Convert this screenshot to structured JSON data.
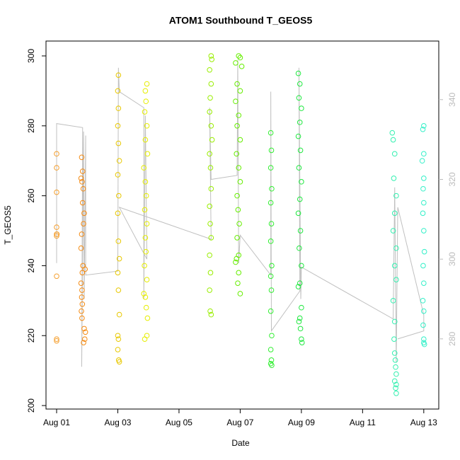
{
  "chart_data": {
    "type": "scatter",
    "title": "ATOM1 Southbound T_GEOS5",
    "x_label": "Date",
    "y_label": "T_GEOS5",
    "xlim": [
      0.653,
      13.49
    ],
    "ylim": [
      199,
      304.25
    ],
    "y2lim": [
      262.4,
      354.7
    ],
    "xticks": [
      {
        "value": 1,
        "label": "Aug 01"
      },
      {
        "value": 3,
        "label": "Aug 03"
      },
      {
        "value": 5,
        "label": "Aug 05"
      },
      {
        "value": 7,
        "label": "Aug 07"
      },
      {
        "value": 9,
        "label": "Aug 09"
      },
      {
        "value": 11,
        "label": "Aug 11"
      },
      {
        "value": 13,
        "label": "Aug 13"
      }
    ],
    "yticks": [
      200,
      220,
      240,
      260,
      280,
      300
    ],
    "y2ticks": [
      280,
      300,
      320,
      340
    ],
    "series": [
      {
        "type": "line",
        "axis": "y2",
        "color": "#c0c0c0",
        "x": [
          1.0,
          1.0,
          1.85,
          1.82,
          1.88,
          1.9,
          1.95,
          1.95,
          3.0,
          3.02,
          3.05,
          3.85,
          3.85,
          3.9,
          3.95,
          3.05,
          6.05,
          6.0,
          6.05,
          6.9,
          6.92,
          6.95,
          7.0,
          8.0,
          8.0,
          8.02,
          8.95,
          8.92,
          8.98,
          9.0,
          12.0,
          12.05,
          12.1,
          12.15,
          13.0,
          13.0,
          12.15
        ],
        "values": [
          299,
          334,
          333,
          273,
          332,
          290,
          331,
          296,
          297,
          348,
          342,
          338,
          290,
          336,
          300,
          313,
          305,
          338,
          320,
          321,
          350,
          299,
          306,
          296,
          342,
          282,
          292,
          348,
          290,
          298,
          285,
          318,
          274,
          313,
          286,
          282,
          280
        ]
      },
      {
        "type": "scatter",
        "color": "#f5a030",
        "x": [
          1.0,
          1.0,
          1.0,
          1.0,
          1.0,
          1.0,
          1.01,
          1.0,
          1.0,
          1.0
        ],
        "values": [
          272,
          268,
          261,
          251,
          249,
          248.5,
          249,
          237,
          219,
          218.5
        ]
      },
      {
        "type": "scatter",
        "color": "#f58a10",
        "x": [
          1.82,
          1.85,
          1.8,
          1.83,
          1.87,
          1.85,
          1.9,
          1.88,
          1.82,
          1.8,
          1.86,
          1.84,
          1.8,
          1.83,
          1.82,
          1.84,
          1.81,
          1.83,
          1.9,
          1.92,
          1.88,
          1.94,
          1.93
        ],
        "values": [
          271,
          267,
          265,
          264,
          262,
          258,
          255,
          252,
          249,
          245,
          240,
          238,
          235,
          233,
          231,
          229,
          227,
          225,
          222,
          219,
          218,
          221,
          239
        ]
      },
      {
        "type": "scatter",
        "color": "#e8c800",
        "x": [
          3.02,
          3.0,
          3.02,
          3.0,
          3.02,
          3.05,
          3.0,
          3.03,
          3.0,
          3.02,
          3.05,
          3.0,
          3.02,
          3.05,
          3.0,
          3.02,
          3.0,
          3.03,
          3.05
        ],
        "values": [
          294.5,
          290,
          285,
          280,
          275,
          270,
          266,
          260,
          255,
          247,
          242,
          238,
          233,
          226,
          220,
          219,
          216,
          213,
          212.5
        ]
      },
      {
        "type": "scatter",
        "color": "#e6ee00",
        "x": [
          3.95,
          3.9,
          3.92,
          3.88,
          3.95,
          3.9,
          3.97,
          3.85,
          3.9,
          3.93,
          3.88,
          3.95,
          3.9,
          3.92,
          3.87,
          3.95,
          3.85,
          3.9,
          3.93,
          3.97,
          3.95,
          3.88
        ],
        "values": [
          292,
          290,
          287,
          284,
          280,
          276,
          272,
          268,
          264,
          260,
          256,
          252,
          248,
          244,
          240,
          236,
          232,
          231,
          228,
          225,
          220,
          219
        ]
      },
      {
        "type": "scatter",
        "color": "#99ee00",
        "x": [
          6.05,
          6.07,
          6.0,
          6.05,
          6.02,
          6.0,
          6.05,
          6.08,
          6.0,
          6.03,
          6.05,
          6.0,
          6.02,
          6.05,
          6.0,
          6.03,
          6.0,
          6.02,
          6.05
        ],
        "values": [
          300,
          299,
          296,
          292,
          288,
          284,
          280,
          276,
          272,
          268,
          262,
          257,
          252,
          248,
          243,
          238,
          233,
          227,
          226
        ]
      },
      {
        "type": "scatter",
        "color": "#66ee00",
        "x": [
          6.95,
          7.0,
          6.85,
          7.05,
          6.9,
          7.0,
          6.85,
          6.95,
          6.9,
          7.0,
          6.88,
          6.95,
          7.0,
          6.9,
          6.93,
          6.97,
          6.9,
          6.95,
          6.88,
          6.85,
          6.95,
          6.92,
          7.0
        ],
        "values": [
          300,
          299.5,
          298,
          297,
          292,
          290,
          287,
          283,
          280,
          276,
          272,
          268,
          264,
          260,
          256,
          252,
          248,
          243,
          242,
          241,
          238,
          235,
          232
        ]
      },
      {
        "type": "scatter",
        "color": "#30ee30",
        "x": [
          8.0,
          8.02,
          8.0,
          8.03,
          8.0,
          8.02,
          8.0,
          8.03,
          8.0,
          8.02,
          8.0,
          8.03,
          8.0,
          8.02,
          8.0,
          8.03
        ],
        "values": [
          278,
          273,
          268,
          262,
          258,
          252,
          247,
          240,
          237,
          233,
          227,
          220,
          216,
          213,
          212,
          211.5
        ]
      },
      {
        "type": "scatter",
        "color": "#20e840",
        "x": [
          8.9,
          8.95,
          8.92,
          9.0,
          8.95,
          8.9,
          8.97,
          8.92,
          9.0,
          8.95,
          8.9,
          8.97,
          8.93,
          9.0,
          8.95,
          8.9,
          9.0,
          8.95,
          8.92,
          8.97,
          9.0,
          9.02
        ],
        "values": [
          295,
          292,
          288,
          285,
          281,
          277,
          273,
          268,
          264,
          259,
          255,
          250,
          245,
          240,
          235,
          234,
          228,
          225,
          224,
          222,
          219,
          218
        ]
      },
      {
        "type": "scatter",
        "color": "#33f0b0",
        "x": [
          11.97,
          12.0,
          12.05,
          12.02,
          12.1,
          12.05,
          12.0,
          12.1,
          12.05,
          12.1,
          12.0,
          12.05,
          12.03,
          12.05,
          12.07,
          12.08,
          12.1,
          12.05,
          12.1,
          12.08,
          12.1
        ],
        "values": [
          278,
          276,
          272,
          265,
          260,
          255,
          250,
          245,
          240,
          236,
          230,
          224,
          219,
          215,
          213,
          211,
          209,
          207,
          206,
          205,
          203.5
        ]
      },
      {
        "type": "scatter",
        "color": "#33f0c8",
        "x": [
          13.0,
          12.97,
          13.0,
          12.95,
          13.0,
          12.98,
          13.0,
          12.97,
          13.0,
          13.02,
          12.98,
          13.0,
          12.97,
          13.0,
          12.98,
          13.0,
          13.0,
          13.02
        ],
        "values": [
          280,
          279,
          272,
          270,
          265,
          262,
          258,
          255,
          250,
          244,
          240,
          235,
          230,
          227,
          223,
          219,
          218,
          217.5
        ]
      }
    ]
  }
}
